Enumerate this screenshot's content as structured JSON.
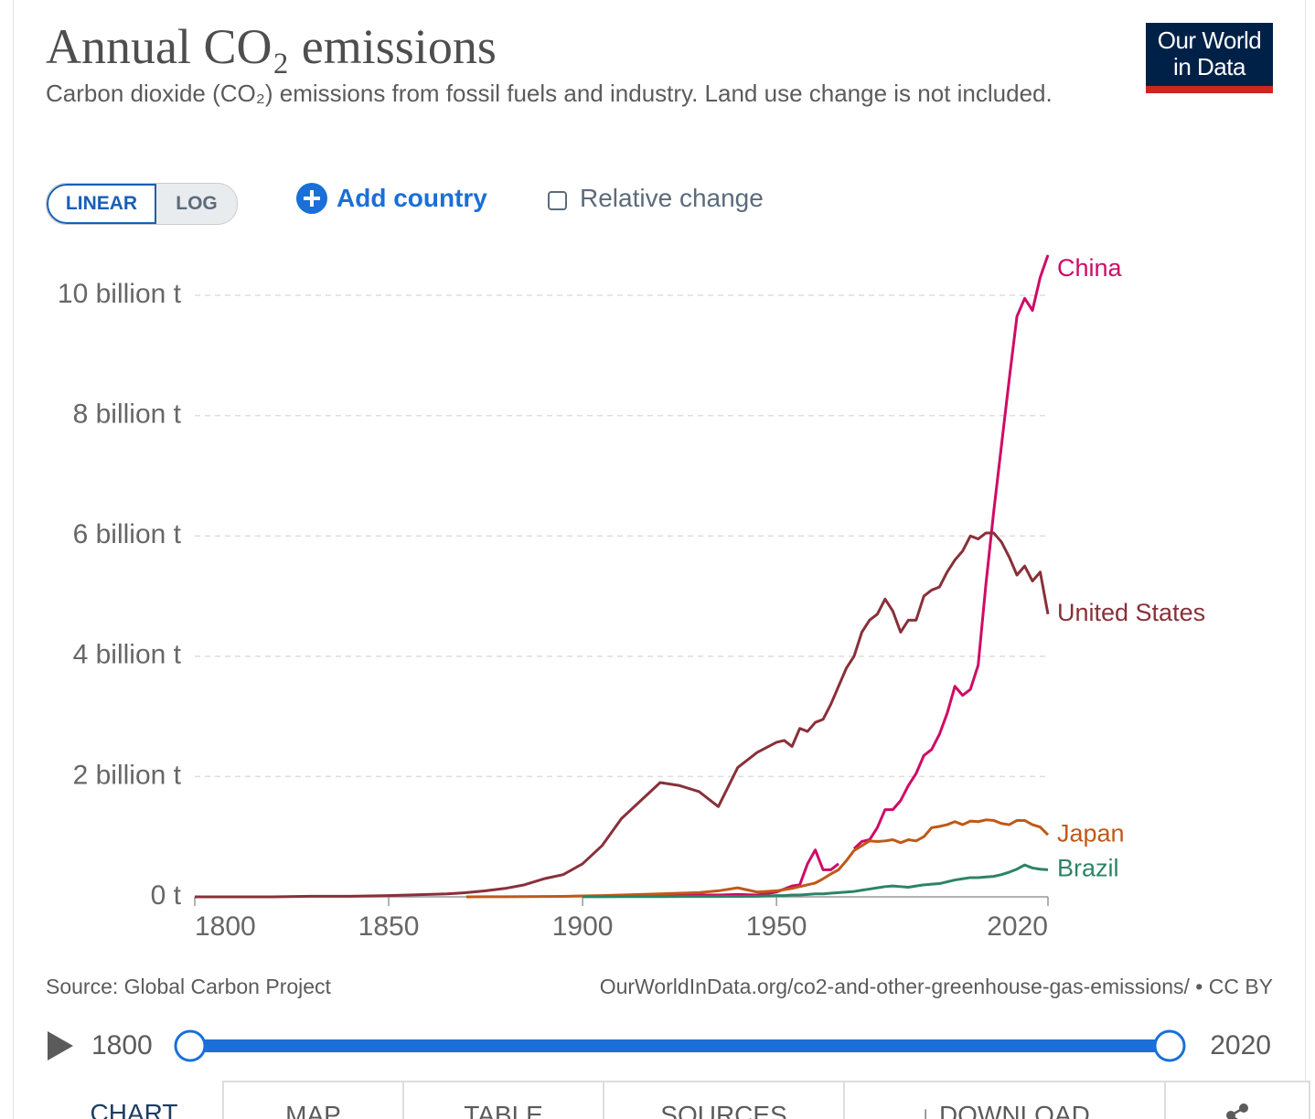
{
  "header": {
    "title": "Annual CO₂ emissions",
    "subtitle": "Carbon dioxide (CO₂) emissions from fossil fuels and industry. Land use change is not included.",
    "logo": [
      "Our World",
      "in Data"
    ]
  },
  "controls": {
    "scale_options": [
      "LINEAR",
      "LOG"
    ],
    "add": "Add country",
    "checkbox": "Relative change"
  },
  "chart_data": {
    "type": "line",
    "x": [
      1800,
      1810,
      1820,
      1830,
      1840,
      1850,
      1855,
      1860,
      1865,
      1870,
      1875,
      1880,
      1885,
      1890,
      1895,
      1900,
      1905,
      1910,
      1915,
      1920,
      1925,
      1930,
      1935,
      1940,
      1945,
      1950,
      1952,
      1954,
      1956,
      1958,
      1960,
      1962,
      1964,
      1966,
      1968,
      1970,
      1972,
      1974,
      1976,
      1978,
      1980,
      1982,
      1984,
      1986,
      1988,
      1990,
      1992,
      1994,
      1996,
      1998,
      2000,
      2002,
      2004,
      2006,
      2008,
      2010,
      2012,
      2014,
      2016,
      2018,
      2020
    ],
    "series": [
      {
        "name": "China",
        "color": "#cf0a66",
        "values": [
          null,
          null,
          null,
          null,
          null,
          null,
          null,
          null,
          null,
          null,
          null,
          null,
          null,
          null,
          null,
          0.01,
          0.01,
          0.02,
          0.02,
          0.02,
          0.03,
          0.03,
          0.03,
          0.04,
          0.03,
          0.08,
          0.13,
          0.18,
          0.2,
          0.55,
          0.78,
          0.45,
          0.45,
          0.55,
          null,
          0.8,
          0.92,
          0.95,
          1.15,
          1.45,
          1.45,
          1.6,
          1.85,
          2.05,
          2.35,
          2.45,
          2.7,
          3.05,
          3.5,
          3.35,
          3.45,
          3.85,
          5.2,
          6.4,
          7.5,
          8.6,
          9.65,
          9.95,
          9.75,
          10.3,
          10.67
        ]
      },
      {
        "name": "United States",
        "color": "#883039",
        "values": [
          0,
          0,
          0,
          0.01,
          0.01,
          0.02,
          0.03,
          0.04,
          0.05,
          0.07,
          0.1,
          0.14,
          0.2,
          0.3,
          0.37,
          0.55,
          0.85,
          1.3,
          1.6,
          1.9,
          1.85,
          1.75,
          1.5,
          2.15,
          2.4,
          2.57,
          2.6,
          2.5,
          2.8,
          2.75,
          2.9,
          2.95,
          3.2,
          3.5,
          3.8,
          4.0,
          4.4,
          4.6,
          4.7,
          4.95,
          4.75,
          4.4,
          4.6,
          4.6,
          5.0,
          5.1,
          5.15,
          5.4,
          5.6,
          5.75,
          6.0,
          5.95,
          6.05,
          6.05,
          5.9,
          5.65,
          5.35,
          5.5,
          5.25,
          5.4,
          4.7
        ]
      },
      {
        "name": "Japan",
        "color": "#c05917",
        "values": [
          null,
          null,
          null,
          null,
          null,
          null,
          null,
          null,
          null,
          0,
          0.001,
          0.002,
          0.003,
          0.005,
          0.008,
          0.015,
          0.02,
          0.03,
          0.04,
          0.05,
          0.06,
          0.07,
          0.1,
          0.15,
          0.08,
          0.1,
          0.12,
          0.14,
          0.17,
          0.2,
          0.23,
          0.3,
          0.38,
          0.45,
          0.6,
          0.77,
          0.85,
          0.93,
          0.92,
          0.93,
          0.95,
          0.9,
          0.95,
          0.93,
          1.0,
          1.15,
          1.17,
          1.2,
          1.25,
          1.2,
          1.26,
          1.25,
          1.28,
          1.27,
          1.22,
          1.2,
          1.27,
          1.27,
          1.2,
          1.16,
          1.03
        ]
      },
      {
        "name": "Brazil",
        "color": "#2c8465",
        "values": [
          null,
          null,
          null,
          null,
          null,
          null,
          null,
          null,
          null,
          null,
          null,
          null,
          null,
          null,
          null,
          0.001,
          0.002,
          0.003,
          0.003,
          0.004,
          0.005,
          0.005,
          0.006,
          0.007,
          0.01,
          0.02,
          0.02,
          0.03,
          0.03,
          0.04,
          0.05,
          0.05,
          0.06,
          0.07,
          0.08,
          0.09,
          0.11,
          0.13,
          0.15,
          0.17,
          0.18,
          0.17,
          0.16,
          0.18,
          0.2,
          0.21,
          0.22,
          0.25,
          0.28,
          0.3,
          0.32,
          0.32,
          0.33,
          0.34,
          0.37,
          0.41,
          0.46,
          0.53,
          0.48,
          0.46,
          0.45
        ]
      }
    ],
    "xlim": [
      1800,
      2020
    ],
    "xticks": [
      1800,
      1850,
      1900,
      1950,
      2020
    ],
    "ylim": [
      0,
      10.7
    ],
    "yticks": [
      {
        "value": 0,
        "label": "0 t"
      },
      {
        "value": 2,
        "label": "2 billion t"
      },
      {
        "value": 4,
        "label": "4 billion t"
      },
      {
        "value": 6,
        "label": "6 billion t"
      },
      {
        "value": 8,
        "label": "8 billion t"
      },
      {
        "value": 10,
        "label": "10 billion t"
      }
    ],
    "grid": true
  },
  "footer": {
    "source": "Source: Global Carbon Project",
    "url": "OurWorldInData.org/co2-and-other-greenhouse-gas-emissions/ • CC BY"
  },
  "timeline": {
    "start": 1800,
    "end": 2020
  },
  "tabs": [
    "CHART",
    "MAP",
    "TABLE",
    "SOURCES",
    "DOWNLOAD"
  ]
}
